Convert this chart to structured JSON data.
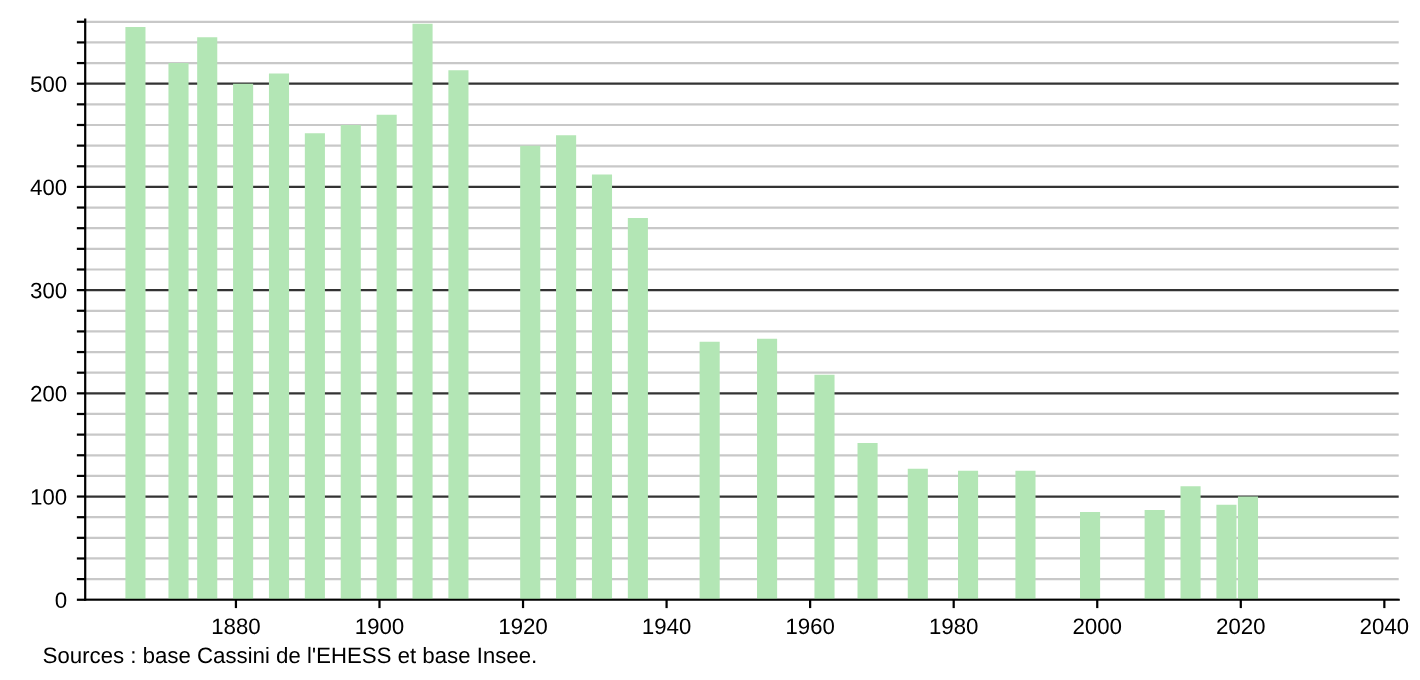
{
  "chart_data": {
    "type": "bar",
    "x": [
      1866,
      1872,
      1876,
      1881,
      1886,
      1891,
      1896,
      1901,
      1906,
      1911,
      1921,
      1926,
      1931,
      1936,
      1946,
      1954,
      1962,
      1968,
      1975,
      1982,
      1990,
      1999,
      2008,
      2013,
      2018,
      2021
    ],
    "values": [
      555,
      520,
      545,
      500,
      510,
      452,
      460,
      470,
      558,
      513,
      440,
      450,
      412,
      370,
      250,
      253,
      218,
      152,
      127,
      125,
      125,
      85,
      87,
      110,
      92,
      100
    ],
    "color": "#b3e6b5",
    "xlim": [
      1859,
      2042
    ],
    "xticks": [
      1880,
      1900,
      1920,
      1940,
      1960,
      1980,
      2000,
      2020,
      2040
    ],
    "ylim": [
      0,
      562
    ],
    "yticks": [
      0,
      {
        "value": 20,
        "label": null
      },
      {
        "value": 40,
        "label": null
      },
      {
        "value": 60,
        "label": null
      },
      {
        "value": 80,
        "label": null
      },
      100,
      {
        "value": 120,
        "label": null
      },
      {
        "value": 140,
        "label": null
      },
      {
        "value": 160,
        "label": null
      },
      {
        "value": 180,
        "label": null
      },
      200,
      {
        "value": 220,
        "label": null
      },
      {
        "value": 240,
        "label": null
      },
      {
        "value": 260,
        "label": null
      },
      {
        "value": 280,
        "label": null
      },
      300,
      {
        "value": 320,
        "label": null
      },
      {
        "value": 340,
        "label": null
      },
      {
        "value": 360,
        "label": null
      },
      {
        "value": 380,
        "label": null
      },
      400,
      {
        "value": 420,
        "label": null
      },
      {
        "value": 440,
        "label": null
      },
      {
        "value": 460,
        "label": null
      },
      {
        "value": 480,
        "label": null
      },
      500,
      {
        "value": 520,
        "label": null
      },
      {
        "value": 540,
        "label": null
      },
      {
        "value": 560,
        "label": null
      }
    ],
    "grid": "y",
    "annotations": [
      "Sources : base Cassini de l'EHESS et base Insee."
    ]
  }
}
